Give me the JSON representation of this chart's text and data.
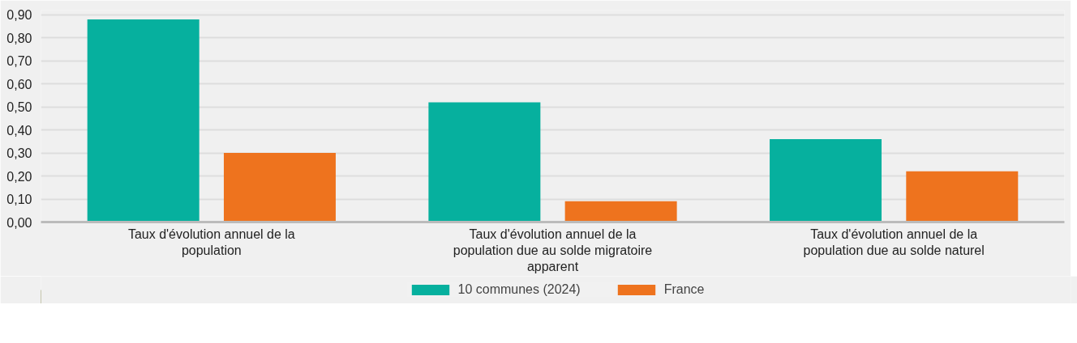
{
  "chart_data": {
    "type": "bar",
    "categories": [
      "Taux d'évolution annuel de la population",
      "Taux d'évolution annuel de la population due au solde migratoire apparent",
      "Taux d'évolution annuel de la population due au solde naturel"
    ],
    "series": [
      {
        "name": "10 communes (2024)",
        "color": "#06b09e",
        "values": [
          0.88,
          0.52,
          0.36
        ]
      },
      {
        "name": "France",
        "color": "#ee731e",
        "values": [
          0.3,
          0.09,
          0.22
        ]
      }
    ],
    "ylim": [
      0,
      0.92
    ],
    "yticks": [
      {
        "value": 0,
        "label": "0,00"
      },
      {
        "value": 0.1,
        "label": "0,10"
      },
      {
        "value": 0.2,
        "label": "0,20"
      },
      {
        "value": 0.3,
        "label": "0,30"
      },
      {
        "value": 0.4,
        "label": "0,40"
      },
      {
        "value": 0.5,
        "label": "0,50"
      },
      {
        "value": 0.6,
        "label": "0,60"
      },
      {
        "value": 0.7,
        "label": "0,70"
      },
      {
        "value": 0.8,
        "label": "0,80"
      },
      {
        "value": 0.9,
        "label": "0,90"
      }
    ],
    "grid": "y",
    "legend": "bottom"
  }
}
